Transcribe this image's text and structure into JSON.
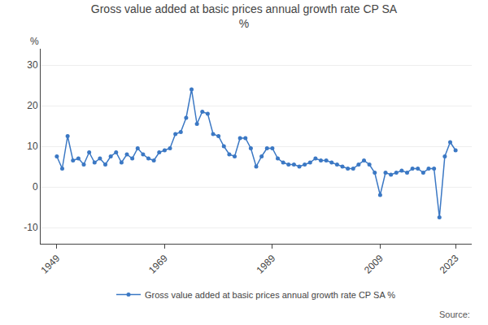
{
  "chart_data": {
    "type": "line",
    "title": "Gross value added at basic prices annual growth rate CP SA",
    "subtitle": "%",
    "ylabel": "%",
    "annotations": [
      "Source:"
    ],
    "x": [
      1949,
      1950,
      1951,
      1952,
      1953,
      1954,
      1955,
      1956,
      1957,
      1958,
      1959,
      1960,
      1961,
      1962,
      1963,
      1964,
      1965,
      1966,
      1967,
      1968,
      1969,
      1970,
      1971,
      1972,
      1973,
      1974,
      1975,
      1976,
      1977,
      1978,
      1979,
      1980,
      1981,
      1982,
      1983,
      1984,
      1985,
      1986,
      1987,
      1988,
      1989,
      1990,
      1991,
      1992,
      1993,
      1994,
      1995,
      1996,
      1997,
      1998,
      1999,
      2000,
      2001,
      2002,
      2003,
      2004,
      2005,
      2006,
      2007,
      2008,
      2009,
      2010,
      2011,
      2012,
      2013,
      2014,
      2015,
      2016,
      2017,
      2018,
      2019,
      2020,
      2021,
      2022,
      2023
    ],
    "series": [
      {
        "name": "Gross value added at basic prices annual growth rate CP SA %",
        "color": "#3b78c4",
        "marker": "circle",
        "values": [
          7.5,
          4.5,
          12.5,
          6.5,
          7.0,
          5.5,
          8.5,
          6.0,
          7.0,
          5.5,
          7.5,
          8.5,
          6.0,
          8.0,
          7.0,
          9.5,
          8.0,
          7.0,
          6.5,
          8.5,
          9.0,
          9.5,
          13.0,
          13.5,
          17.0,
          24.0,
          15.5,
          18.5,
          18.0,
          13.0,
          12.5,
          10.0,
          8.0,
          7.5,
          12.0,
          12.0,
          9.5,
          5.0,
          7.5,
          9.5,
          9.5,
          7.0,
          6.0,
          5.5,
          5.5,
          5.0,
          5.5,
          6.0,
          7.0,
          6.5,
          6.5,
          6.0,
          5.5,
          5.0,
          4.5,
          4.5,
          5.5,
          6.5,
          5.5,
          3.5,
          -2.0,
          3.5,
          3.0,
          3.5,
          4.0,
          3.5,
          4.5,
          4.5,
          3.5,
          4.5,
          4.5,
          -7.5,
          7.5,
          11.0,
          9.0
        ]
      }
    ],
    "xlim": [
      1946,
      2026
    ],
    "xticks": [
      1949,
      1969,
      1989,
      2009,
      2023
    ],
    "ylim": [
      -14,
      34
    ],
    "yticks": [
      -10,
      0,
      10,
      20,
      30
    ],
    "grid": true,
    "legend": "bottom"
  }
}
